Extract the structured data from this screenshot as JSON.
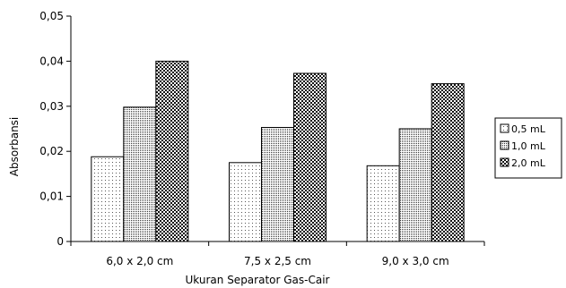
{
  "chart_data": {
    "type": "bar",
    "title": "",
    "xlabel": "Ukuran Separator Gas-Cair",
    "ylabel": "Absorbansi",
    "categories": [
      "6,0 x 2,0 cm",
      "7,5 x 2,5 cm",
      "9,0 x 3,0 cm"
    ],
    "series": [
      {
        "name": "0,5 mL",
        "values": [
          0.0188,
          0.0175,
          0.0168
        ],
        "pattern": "sparse-dots"
      },
      {
        "name": "1,0 mL",
        "values": [
          0.0298,
          0.0253,
          0.025
        ],
        "pattern": "dense-dots"
      },
      {
        "name": "2,0 mL",
        "values": [
          0.04,
          0.0373,
          0.035
        ],
        "pattern": "checker"
      }
    ],
    "ylim": [
      0,
      0.05
    ],
    "yticks": [
      "0",
      "0,01",
      "0,02",
      "0,03",
      "0,04",
      "0,05"
    ],
    "ytick_values": [
      0,
      0.01,
      0.02,
      0.03,
      0.04,
      0.05
    ],
    "grid": false,
    "legend": "right"
  }
}
